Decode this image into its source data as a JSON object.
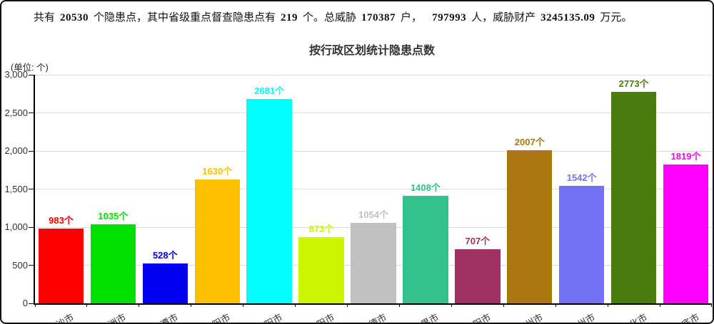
{
  "summary": {
    "part1": "共有",
    "value1": "20530",
    "part2": "个隐患点，其中省级重点督查隐患点有",
    "value2": "219",
    "part3": "个。总威胁",
    "value3": "170387",
    "part4": "户，",
    "value4": "797993",
    "part5": "人，威胁财产",
    "value5": "3245135.09",
    "part6": "万元。"
  },
  "chart_data": {
    "type": "bar",
    "title": "按行政区划统计隐患点数",
    "unit_label": "(单位: 个)",
    "categories": [
      "长沙市",
      "株洲市",
      "湘潭市",
      "衡阳市",
      "邵阳市",
      "岳阳市",
      "常德市",
      "张家界市",
      "益阳市",
      "郴州市",
      "永州市",
      "怀化市",
      "娄底市"
    ],
    "values": [
      983,
      1035,
      528,
      1630,
      2681,
      873,
      1054,
      1408,
      707,
      2007,
      1542,
      2773,
      1819
    ],
    "value_suffix": "个",
    "bar_colors": [
      "#ff0000",
      "#00e100",
      "#0000f0",
      "#ffc000",
      "#00ffff",
      "#ccf500",
      "#c0c0c0",
      "#33c28c",
      "#a03263",
      "#aa7711",
      "#7272f2",
      "#4a7d0f",
      "#ff00ff"
    ],
    "ylim": [
      0,
      3000
    ],
    "yticks": [
      0,
      500,
      1000,
      1500,
      2000,
      2500,
      3000
    ],
    "grid": true,
    "legend": "none",
    "xlabel": "",
    "ylabel": ""
  }
}
